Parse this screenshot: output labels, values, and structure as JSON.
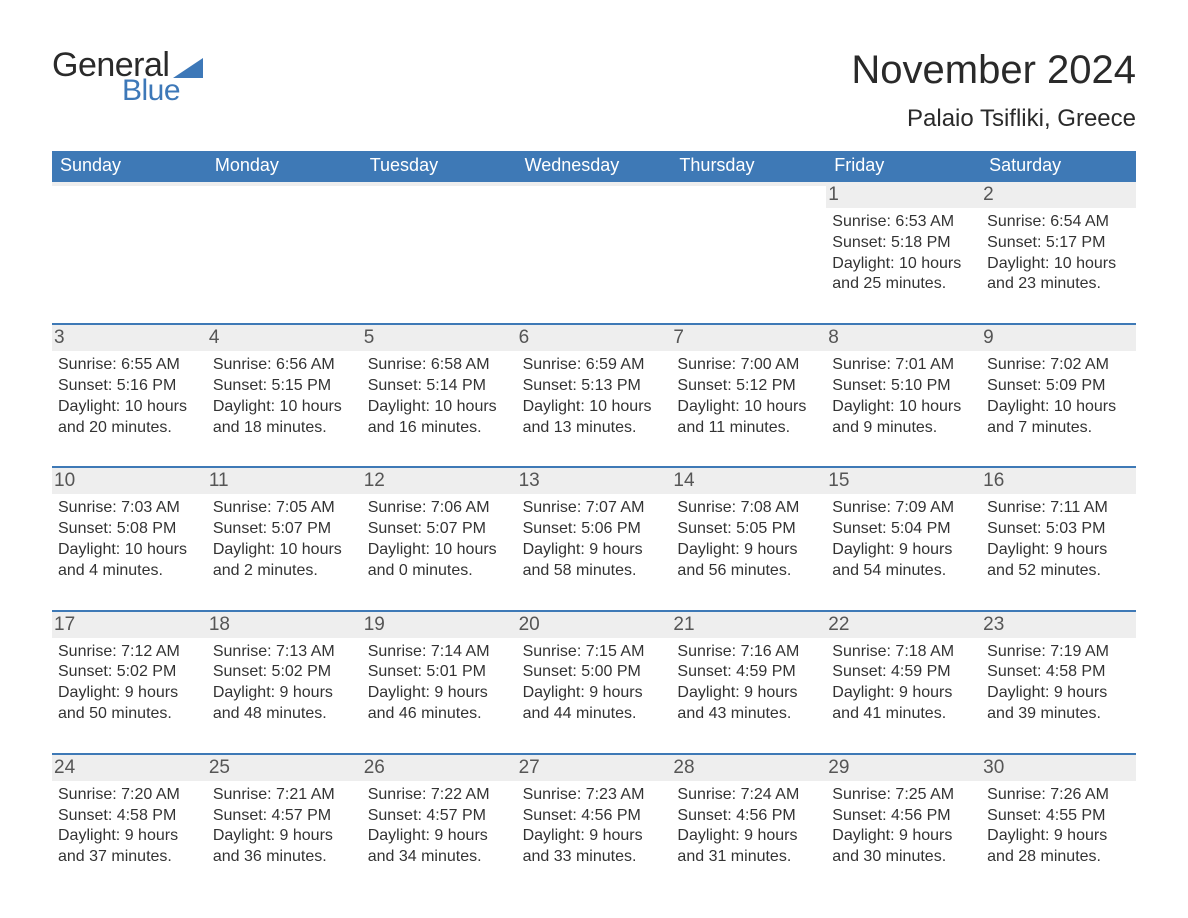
{
  "brand": {
    "word1": "General",
    "word2": "Blue",
    "word1_color": "#2a2a2a",
    "word2_color": "#3d78b8",
    "triangle_color": "#3d78b8"
  },
  "title": "November 2024",
  "location": "Palaio Tsifliki, Greece",
  "colors": {
    "header_bg": "#3e79b6",
    "header_text": "#ffffff",
    "week_rule": "#3e79b6",
    "daynum_bg": "#eeeeee",
    "daynum_text": "#555555",
    "body_text": "#333333",
    "page_bg": "#ffffff"
  },
  "typography": {
    "title_fontsize": 40,
    "location_fontsize": 24,
    "dayheader_fontsize": 18,
    "daynum_fontsize": 19,
    "detail_fontsize": 16
  },
  "day_names": [
    "Sunday",
    "Monday",
    "Tuesday",
    "Wednesday",
    "Thursday",
    "Friday",
    "Saturday"
  ],
  "weeks": [
    [
      {
        "n": "",
        "sunrise": "",
        "sunset": "",
        "daylight": ""
      },
      {
        "n": "",
        "sunrise": "",
        "sunset": "",
        "daylight": ""
      },
      {
        "n": "",
        "sunrise": "",
        "sunset": "",
        "daylight": ""
      },
      {
        "n": "",
        "sunrise": "",
        "sunset": "",
        "daylight": ""
      },
      {
        "n": "",
        "sunrise": "",
        "sunset": "",
        "daylight": ""
      },
      {
        "n": "1",
        "sunrise": "Sunrise: 6:53 AM",
        "sunset": "Sunset: 5:18 PM",
        "daylight": "Daylight: 10 hours and 25 minutes."
      },
      {
        "n": "2",
        "sunrise": "Sunrise: 6:54 AM",
        "sunset": "Sunset: 5:17 PM",
        "daylight": "Daylight: 10 hours and 23 minutes."
      }
    ],
    [
      {
        "n": "3",
        "sunrise": "Sunrise: 6:55 AM",
        "sunset": "Sunset: 5:16 PM",
        "daylight": "Daylight: 10 hours and 20 minutes."
      },
      {
        "n": "4",
        "sunrise": "Sunrise: 6:56 AM",
        "sunset": "Sunset: 5:15 PM",
        "daylight": "Daylight: 10 hours and 18 minutes."
      },
      {
        "n": "5",
        "sunrise": "Sunrise: 6:58 AM",
        "sunset": "Sunset: 5:14 PM",
        "daylight": "Daylight: 10 hours and 16 minutes."
      },
      {
        "n": "6",
        "sunrise": "Sunrise: 6:59 AM",
        "sunset": "Sunset: 5:13 PM",
        "daylight": "Daylight: 10 hours and 13 minutes."
      },
      {
        "n": "7",
        "sunrise": "Sunrise: 7:00 AM",
        "sunset": "Sunset: 5:12 PM",
        "daylight": "Daylight: 10 hours and 11 minutes."
      },
      {
        "n": "8",
        "sunrise": "Sunrise: 7:01 AM",
        "sunset": "Sunset: 5:10 PM",
        "daylight": "Daylight: 10 hours and 9 minutes."
      },
      {
        "n": "9",
        "sunrise": "Sunrise: 7:02 AM",
        "sunset": "Sunset: 5:09 PM",
        "daylight": "Daylight: 10 hours and 7 minutes."
      }
    ],
    [
      {
        "n": "10",
        "sunrise": "Sunrise: 7:03 AM",
        "sunset": "Sunset: 5:08 PM",
        "daylight": "Daylight: 10 hours and 4 minutes."
      },
      {
        "n": "11",
        "sunrise": "Sunrise: 7:05 AM",
        "sunset": "Sunset: 5:07 PM",
        "daylight": "Daylight: 10 hours and 2 minutes."
      },
      {
        "n": "12",
        "sunrise": "Sunrise: 7:06 AM",
        "sunset": "Sunset: 5:07 PM",
        "daylight": "Daylight: 10 hours and 0 minutes."
      },
      {
        "n": "13",
        "sunrise": "Sunrise: 7:07 AM",
        "sunset": "Sunset: 5:06 PM",
        "daylight": "Daylight: 9 hours and 58 minutes."
      },
      {
        "n": "14",
        "sunrise": "Sunrise: 7:08 AM",
        "sunset": "Sunset: 5:05 PM",
        "daylight": "Daylight: 9 hours and 56 minutes."
      },
      {
        "n": "15",
        "sunrise": "Sunrise: 7:09 AM",
        "sunset": "Sunset: 5:04 PM",
        "daylight": "Daylight: 9 hours and 54 minutes."
      },
      {
        "n": "16",
        "sunrise": "Sunrise: 7:11 AM",
        "sunset": "Sunset: 5:03 PM",
        "daylight": "Daylight: 9 hours and 52 minutes."
      }
    ],
    [
      {
        "n": "17",
        "sunrise": "Sunrise: 7:12 AM",
        "sunset": "Sunset: 5:02 PM",
        "daylight": "Daylight: 9 hours and 50 minutes."
      },
      {
        "n": "18",
        "sunrise": "Sunrise: 7:13 AM",
        "sunset": "Sunset: 5:02 PM",
        "daylight": "Daylight: 9 hours and 48 minutes."
      },
      {
        "n": "19",
        "sunrise": "Sunrise: 7:14 AM",
        "sunset": "Sunset: 5:01 PM",
        "daylight": "Daylight: 9 hours and 46 minutes."
      },
      {
        "n": "20",
        "sunrise": "Sunrise: 7:15 AM",
        "sunset": "Sunset: 5:00 PM",
        "daylight": "Daylight: 9 hours and 44 minutes."
      },
      {
        "n": "21",
        "sunrise": "Sunrise: 7:16 AM",
        "sunset": "Sunset: 4:59 PM",
        "daylight": "Daylight: 9 hours and 43 minutes."
      },
      {
        "n": "22",
        "sunrise": "Sunrise: 7:18 AM",
        "sunset": "Sunset: 4:59 PM",
        "daylight": "Daylight: 9 hours and 41 minutes."
      },
      {
        "n": "23",
        "sunrise": "Sunrise: 7:19 AM",
        "sunset": "Sunset: 4:58 PM",
        "daylight": "Daylight: 9 hours and 39 minutes."
      }
    ],
    [
      {
        "n": "24",
        "sunrise": "Sunrise: 7:20 AM",
        "sunset": "Sunset: 4:58 PM",
        "daylight": "Daylight: 9 hours and 37 minutes."
      },
      {
        "n": "25",
        "sunrise": "Sunrise: 7:21 AM",
        "sunset": "Sunset: 4:57 PM",
        "daylight": "Daylight: 9 hours and 36 minutes."
      },
      {
        "n": "26",
        "sunrise": "Sunrise: 7:22 AM",
        "sunset": "Sunset: 4:57 PM",
        "daylight": "Daylight: 9 hours and 34 minutes."
      },
      {
        "n": "27",
        "sunrise": "Sunrise: 7:23 AM",
        "sunset": "Sunset: 4:56 PM",
        "daylight": "Daylight: 9 hours and 33 minutes."
      },
      {
        "n": "28",
        "sunrise": "Sunrise: 7:24 AM",
        "sunset": "Sunset: 4:56 PM",
        "daylight": "Daylight: 9 hours and 31 minutes."
      },
      {
        "n": "29",
        "sunrise": "Sunrise: 7:25 AM",
        "sunset": "Sunset: 4:56 PM",
        "daylight": "Daylight: 9 hours and 30 minutes."
      },
      {
        "n": "30",
        "sunrise": "Sunrise: 7:26 AM",
        "sunset": "Sunset: 4:55 PM",
        "daylight": "Daylight: 9 hours and 28 minutes."
      }
    ]
  ]
}
